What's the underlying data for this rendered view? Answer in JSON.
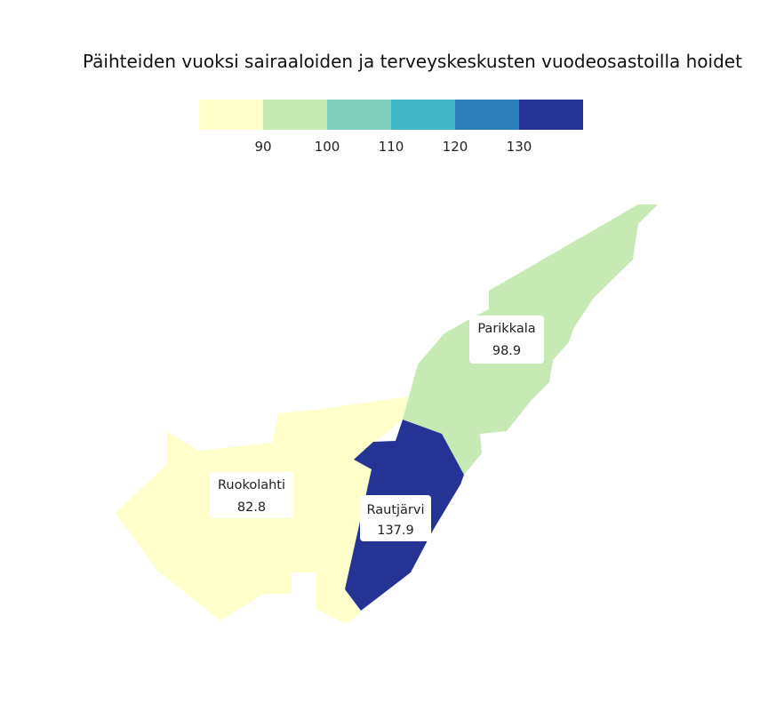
{
  "title": "Päihteiden vuoksi sairaaloiden ja terveyskeskusten vuodeosastoilla hoidet",
  "legend": {
    "colors": [
      "#ffffcc",
      "#c7e9b4",
      "#7fcdbb",
      "#41b6c4",
      "#2c7fb8",
      "#253494"
    ],
    "breaks": [
      90,
      100,
      110,
      120,
      130
    ],
    "tick_labels": [
      "90",
      "100",
      "110",
      "120",
      "130"
    ]
  },
  "regions": [
    {
      "id": "ruokolahti",
      "name": "Ruokolahti",
      "value": 82.8,
      "value_label": "82.8",
      "color": "#ffffcc"
    },
    {
      "id": "parikkala",
      "name": "Parikkala",
      "value": 98.9,
      "value_label": "98.9",
      "color": "#c7e9b4"
    },
    {
      "id": "rautjarvi",
      "name": "Rautjärvi",
      "value": 137.9,
      "value_label": "137.9",
      "color": "#253494"
    }
  ]
}
